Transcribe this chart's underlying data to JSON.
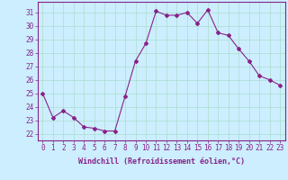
{
  "x": [
    0,
    1,
    2,
    3,
    4,
    5,
    6,
    7,
    8,
    9,
    10,
    11,
    12,
    13,
    14,
    15,
    16,
    17,
    18,
    19,
    20,
    21,
    22,
    23
  ],
  "y": [
    25.0,
    23.2,
    23.7,
    23.2,
    22.5,
    22.4,
    22.2,
    22.2,
    24.8,
    27.4,
    28.7,
    31.1,
    30.8,
    30.8,
    31.0,
    30.2,
    31.2,
    29.5,
    29.3,
    28.3,
    27.4,
    26.3,
    26.0,
    25.6
  ],
  "line_color": "#882288",
  "marker": "D",
  "marker_size": 2.0,
  "bg_color": "#cceeff",
  "grid_color": "#aaddcc",
  "xlabel": "Windchill (Refroidissement éolien,°C)",
  "ylabel_ticks": [
    22,
    23,
    24,
    25,
    26,
    27,
    28,
    29,
    30,
    31
  ],
  "xtick_labels": [
    "0",
    "1",
    "2",
    "3",
    "4",
    "5",
    "6",
    "7",
    "8",
    "9",
    "10",
    "11",
    "12",
    "13",
    "14",
    "15",
    "16",
    "17",
    "18",
    "19",
    "20",
    "21",
    "22",
    "23"
  ],
  "ylim": [
    21.5,
    31.8
  ],
  "xlim": [
    -0.5,
    23.5
  ],
  "label_color": "#882288",
  "tick_color": "#882288",
  "tick_fontsize": 5.5,
  "xlabel_fontsize": 6.0
}
